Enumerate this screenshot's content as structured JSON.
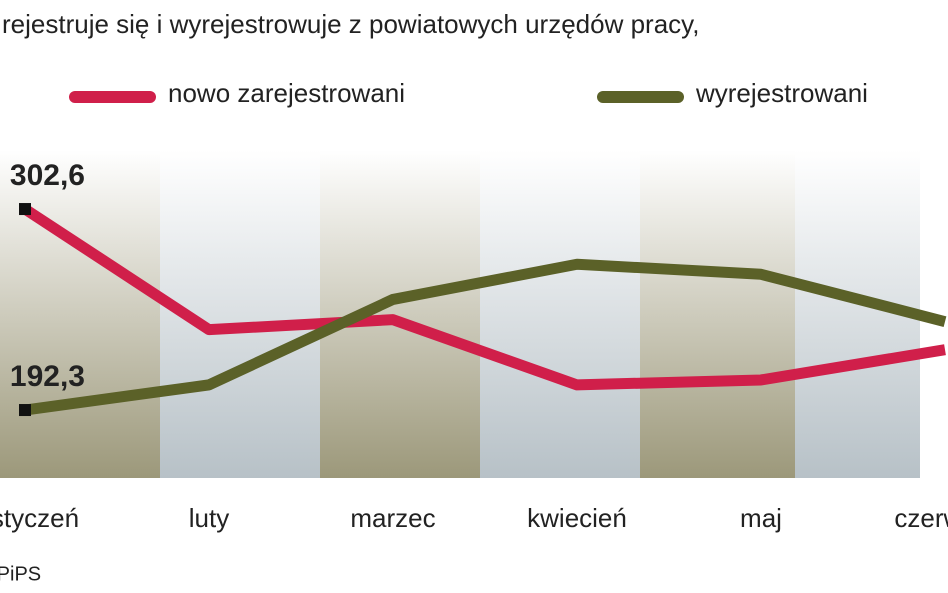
{
  "chart_data": {
    "type": "line",
    "subtitle": "rejestruje się i wyrejestrowuje z powiatowych urzędów pracy,",
    "categories": [
      "styczeń",
      "luty",
      "marzec",
      "kwiecień",
      "maj",
      "czerwiec"
    ],
    "series": [
      {
        "name": "nowo zarejestrowani",
        "color": "#d01f4a",
        "values": [
          302.6,
          236.4,
          241.9,
          206.1,
          208.8,
          225.4
        ],
        "value_labels": [
          "302,6",
          null,
          null,
          null,
          null,
          null
        ]
      },
      {
        "name": "wyrejestrowani",
        "color": "#5b6128",
        "values": [
          192.3,
          206.1,
          253.0,
          272.3,
          266.8,
          240.8
        ],
        "value_labels": [
          "192,3",
          null,
          null,
          null,
          null,
          null
        ]
      }
    ],
    "ylim": [
      155,
      335
    ],
    "source": "MPiPS"
  }
}
